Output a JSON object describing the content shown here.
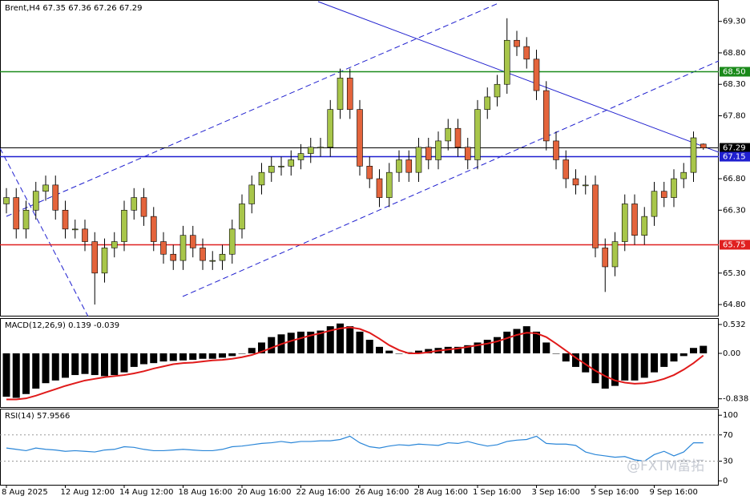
{
  "chart_data": [
    {
      "type": "candlestick",
      "title": "Brent,H4 67.35 67.36 67.26 67.29",
      "up_color": "#a8c64a",
      "down_color": "#e4643c",
      "ylim": [
        64.61,
        69.64
      ],
      "yticks": [
        {
          "value": 69.3,
          "label": "69.30"
        },
        {
          "value": 68.8,
          "label": "68.80"
        },
        {
          "value": 68.3,
          "label": "68.30"
        },
        {
          "value": 67.8,
          "label": "67.80"
        },
        {
          "value": 66.8,
          "label": "66.80"
        },
        {
          "value": 66.3,
          "label": "66.30"
        },
        {
          "value": 65.3,
          "label": "65.30"
        },
        {
          "value": 64.8,
          "label": "64.80"
        }
      ],
      "levels": [
        {
          "value": 68.5,
          "label": "68.50",
          "color": "#1a8a1a"
        },
        {
          "value": 67.29,
          "label": "67.29",
          "color": "#000000"
        },
        {
          "value": 67.15,
          "label": "67.15",
          "color": "#1f1fcf"
        },
        {
          "value": 65.75,
          "label": "65.75",
          "color": "#e02020"
        }
      ],
      "candles": [
        [
          66.4,
          66.65,
          66.25,
          66.5
        ],
        [
          66.5,
          66.65,
          65.85,
          66.0
        ],
        [
          66.0,
          66.45,
          65.85,
          66.3
        ],
        [
          66.3,
          66.75,
          66.15,
          66.6
        ],
        [
          66.6,
          66.85,
          66.45,
          66.7
        ],
        [
          66.7,
          66.85,
          66.15,
          66.3
        ],
        [
          66.3,
          66.45,
          65.85,
          66.0
        ],
        [
          66.0,
          66.15,
          65.85,
          66.0
        ],
        [
          66.0,
          66.15,
          65.65,
          65.8
        ],
        [
          65.8,
          65.95,
          64.8,
          65.3
        ],
        [
          65.3,
          65.85,
          65.15,
          65.7
        ],
        [
          65.7,
          65.95,
          65.55,
          65.8
        ],
        [
          65.8,
          66.45,
          65.65,
          66.3
        ],
        [
          66.3,
          66.65,
          66.15,
          66.5
        ],
        [
          66.5,
          66.65,
          66.05,
          66.2
        ],
        [
          66.2,
          66.35,
          65.65,
          65.8
        ],
        [
          65.8,
          65.95,
          65.45,
          65.6
        ],
        [
          65.6,
          65.75,
          65.35,
          65.5
        ],
        [
          65.5,
          66.05,
          65.35,
          65.9
        ],
        [
          65.9,
          66.05,
          65.55,
          65.7
        ],
        [
          65.7,
          65.85,
          65.35,
          65.5
        ],
        [
          65.5,
          65.65,
          65.35,
          65.5
        ],
        [
          65.5,
          65.75,
          65.35,
          65.6
        ],
        [
          65.6,
          66.15,
          65.45,
          66.0
        ],
        [
          66.0,
          66.55,
          65.85,
          66.4
        ],
        [
          66.4,
          66.85,
          66.25,
          66.7
        ],
        [
          66.7,
          67.05,
          66.55,
          66.9
        ],
        [
          66.9,
          67.15,
          66.75,
          67.0
        ],
        [
          67.0,
          67.15,
          66.85,
          67.0
        ],
        [
          67.0,
          67.25,
          66.85,
          67.1
        ],
        [
          67.1,
          67.35,
          66.95,
          67.2
        ],
        [
          67.2,
          67.45,
          67.05,
          67.3
        ],
        [
          67.3,
          67.45,
          67.15,
          67.3
        ],
        [
          67.3,
          68.05,
          67.15,
          67.9
        ],
        [
          67.9,
          68.55,
          67.75,
          68.4
        ],
        [
          68.4,
          68.55,
          67.75,
          67.9
        ],
        [
          67.9,
          68.05,
          66.85,
          67.0
        ],
        [
          67.0,
          67.15,
          66.65,
          66.8
        ],
        [
          66.8,
          66.95,
          66.35,
          66.5
        ],
        [
          66.5,
          67.05,
          66.35,
          66.9
        ],
        [
          66.9,
          67.25,
          66.75,
          67.1
        ],
        [
          67.1,
          67.25,
          66.75,
          66.9
        ],
        [
          66.9,
          67.45,
          66.75,
          67.3
        ],
        [
          67.3,
          67.45,
          66.95,
          67.1
        ],
        [
          67.1,
          67.55,
          66.95,
          67.4
        ],
        [
          67.4,
          67.75,
          67.25,
          67.6
        ],
        [
          67.6,
          67.75,
          67.15,
          67.3
        ],
        [
          67.3,
          67.45,
          66.95,
          67.1
        ],
        [
          67.1,
          68.05,
          66.95,
          67.9
        ],
        [
          67.9,
          68.25,
          67.75,
          68.1
        ],
        [
          68.1,
          68.45,
          67.95,
          68.3
        ],
        [
          68.3,
          69.35,
          68.15,
          69.0
        ],
        [
          69.0,
          69.15,
          68.75,
          68.9
        ],
        [
          68.9,
          69.05,
          68.55,
          68.7
        ],
        [
          68.7,
          68.85,
          68.05,
          68.2
        ],
        [
          68.2,
          68.35,
          67.25,
          67.4
        ],
        [
          67.4,
          67.55,
          66.95,
          67.1
        ],
        [
          67.1,
          67.25,
          66.65,
          66.8
        ],
        [
          66.8,
          66.95,
          66.55,
          66.7
        ],
        [
          66.7,
          66.85,
          66.55,
          66.7
        ],
        [
          66.7,
          66.85,
          65.55,
          65.7
        ],
        [
          65.7,
          65.85,
          65.0,
          65.4
        ],
        [
          65.4,
          65.95,
          65.25,
          65.8
        ],
        [
          65.8,
          66.55,
          65.65,
          66.4
        ],
        [
          66.4,
          66.55,
          65.75,
          65.9
        ],
        [
          65.9,
          66.35,
          65.75,
          66.2
        ],
        [
          66.2,
          66.75,
          66.05,
          66.6
        ],
        [
          66.6,
          66.75,
          66.35,
          66.5
        ],
        [
          66.5,
          66.95,
          66.35,
          66.8
        ],
        [
          66.8,
          67.05,
          66.65,
          66.9
        ],
        [
          66.9,
          67.55,
          66.75,
          67.45
        ],
        [
          67.35,
          67.36,
          67.26,
          67.29
        ]
      ]
    },
    {
      "type": "macd",
      "title": "MACD(12,26,9) 0.139 -0.039",
      "bar_color": "#000000",
      "line_color": "#e01a1a",
      "ylim": [
        -0.99,
        0.635
      ],
      "yticks": [
        0.532,
        {
          "value": 0,
          "label": "0.00"
        },
        -0.838
      ],
      "histogram": [
        -0.8,
        -0.82,
        -0.75,
        -0.65,
        -0.55,
        -0.5,
        -0.45,
        -0.4,
        -0.38,
        -0.4,
        -0.42,
        -0.4,
        -0.35,
        -0.25,
        -0.2,
        -0.18,
        -0.15,
        -0.14,
        -0.13,
        -0.12,
        -0.1,
        -0.1,
        -0.08,
        -0.05,
        0.0,
        0.1,
        0.2,
        0.3,
        0.35,
        0.38,
        0.4,
        0.4,
        0.42,
        0.5,
        0.55,
        0.5,
        0.4,
        0.25,
        0.12,
        0.05,
        0.0,
        0.02,
        0.05,
        0.08,
        0.1,
        0.12,
        0.12,
        0.15,
        0.2,
        0.25,
        0.3,
        0.4,
        0.45,
        0.5,
        0.4,
        0.2,
        0.0,
        -0.15,
        -0.25,
        -0.35,
        -0.55,
        -0.65,
        -0.6,
        -0.5,
        -0.5,
        -0.45,
        -0.35,
        -0.25,
        -0.15,
        -0.05,
        0.1,
        0.139
      ],
      "signal": [
        -0.85,
        -0.85,
        -0.83,
        -0.78,
        -0.72,
        -0.66,
        -0.6,
        -0.55,
        -0.5,
        -0.47,
        -0.44,
        -0.42,
        -0.4,
        -0.37,
        -0.33,
        -0.28,
        -0.24,
        -0.2,
        -0.18,
        -0.17,
        -0.15,
        -0.13,
        -0.12,
        -0.1,
        -0.07,
        -0.03,
        0.03,
        0.1,
        0.17,
        0.23,
        0.28,
        0.33,
        0.37,
        0.42,
        0.46,
        0.48,
        0.45,
        0.38,
        0.27,
        0.15,
        0.06,
        0.0,
        0.0,
        0.02,
        0.05,
        0.07,
        0.09,
        0.12,
        0.15,
        0.18,
        0.22,
        0.28,
        0.34,
        0.38,
        0.37,
        0.3,
        0.18,
        0.05,
        -0.08,
        -0.2,
        -0.32,
        -0.42,
        -0.5,
        -0.54,
        -0.56,
        -0.55,
        -0.52,
        -0.47,
        -0.4,
        -0.3,
        -0.18,
        -0.039
      ]
    },
    {
      "type": "rsi",
      "title": "RSI(14) 57.9566",
      "color": "#2a86d8",
      "ylim": [
        -6,
        110
      ],
      "yticks": [
        100,
        70,
        30,
        0
      ],
      "levels": [
        70,
        30
      ],
      "x": [
        "8 Aug 2025",
        null,
        null,
        null,
        null,
        null,
        "12 Aug 12:00",
        null,
        null,
        null,
        null,
        null,
        "14 Aug 12:00",
        null,
        null,
        null,
        null,
        null,
        "18 Aug 16:00",
        null,
        null,
        null,
        null,
        null,
        "20 Aug 16:00",
        null,
        null,
        null,
        null,
        null,
        "22 Aug 16:00",
        null,
        null,
        null,
        null,
        null,
        "26 Aug 16:00",
        null,
        null,
        null,
        null,
        null,
        "28 Aug 16:00",
        null,
        null,
        null,
        null,
        null,
        "1 Sep 16:00",
        null,
        null,
        null,
        null,
        null,
        "3 Sep 16:00",
        null,
        null,
        null,
        null,
        null,
        "5 Sep 16:00",
        null,
        null,
        null,
        null,
        null,
        "9 Sep 16:00",
        null,
        null,
        null,
        null,
        null
      ],
      "values": [
        50,
        48,
        46,
        50,
        48,
        47,
        45,
        46,
        45,
        44,
        47,
        48,
        52,
        51,
        48,
        46,
        46,
        47,
        48,
        47,
        46,
        46,
        48,
        52,
        53,
        55,
        57,
        58,
        60,
        58,
        60,
        60,
        61,
        61,
        63,
        68,
        58,
        52,
        50,
        53,
        55,
        54,
        56,
        55,
        54,
        58,
        57,
        60,
        56,
        53,
        55,
        60,
        62,
        63,
        68,
        57,
        56,
        56,
        54,
        44,
        40,
        38,
        36,
        37,
        32,
        30,
        40,
        45,
        38,
        44,
        58,
        57.9566
      ]
    }
  ],
  "watermark": "@FXTM富拓"
}
